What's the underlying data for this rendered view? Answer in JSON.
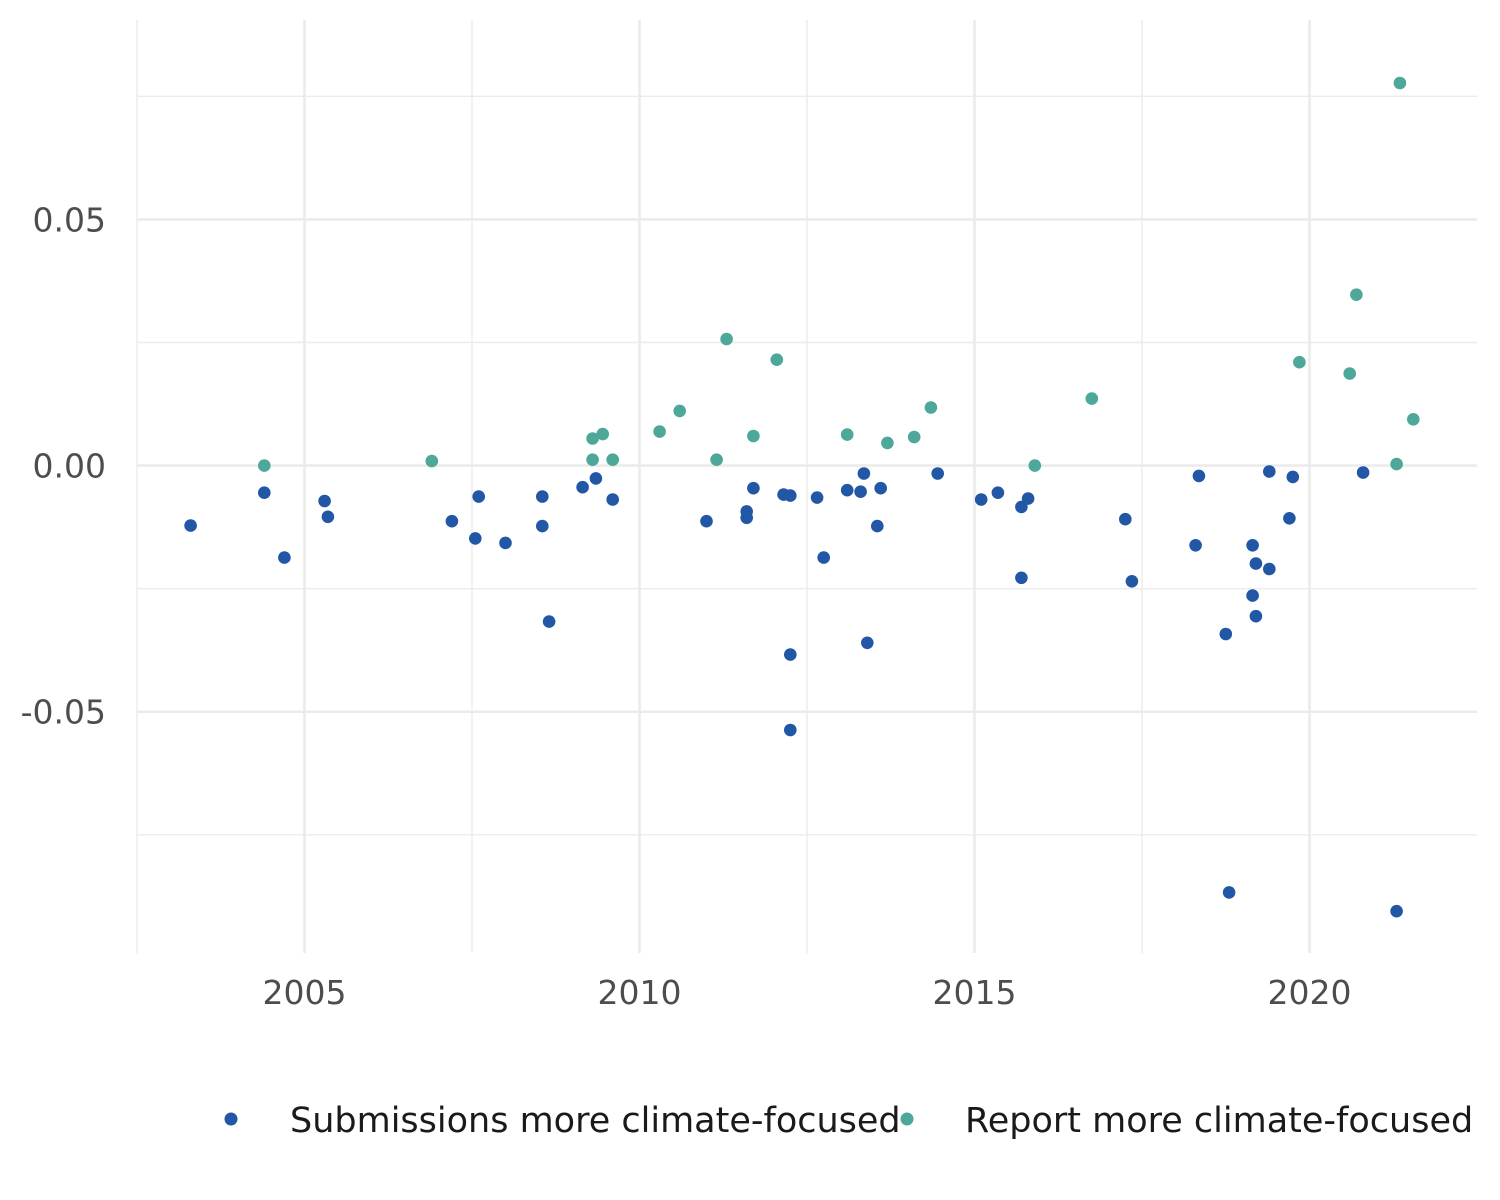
{
  "chart_data": {
    "type": "scatter",
    "title": "",
    "xlabel": "",
    "ylabel": "",
    "xlim": [
      2002.5,
      2022.5
    ],
    "ylim": [
      -0.099,
      0.0905
    ],
    "x_ticks": [
      2005,
      2010,
      2015,
      2020
    ],
    "x_tick_labels": [
      "2005",
      "2010",
      "2015",
      "2020"
    ],
    "y_ticks": [
      0.05,
      0.0,
      -0.05
    ],
    "y_tick_labels": [
      "0.05",
      "0.00",
      "-0.05"
    ],
    "grid": true,
    "legend_position": "bottom",
    "colors": {
      "submissions": "#2257a6",
      "report": "#4da89a"
    },
    "series": [
      {
        "name": "Submissions more climate-focused",
        "color": "#2257a6",
        "points": [
          [
            2003.3,
            -0.0122
          ],
          [
            2004.4,
            -0.0055
          ],
          [
            2004.7,
            -0.0187
          ],
          [
            2005.3,
            -0.0072
          ],
          [
            2005.35,
            -0.0104
          ],
          [
            2007.2,
            -0.0113
          ],
          [
            2007.55,
            -0.0148
          ],
          [
            2007.6,
            -0.0063
          ],
          [
            2008.0,
            -0.0157
          ],
          [
            2008.55,
            -0.0063
          ],
          [
            2008.55,
            -0.0123
          ],
          [
            2008.65,
            -0.0317
          ],
          [
            2009.15,
            -0.0044
          ],
          [
            2009.35,
            -0.0026
          ],
          [
            2009.6,
            -0.0069
          ],
          [
            2011.0,
            -0.0113
          ],
          [
            2011.6,
            -0.0093
          ],
          [
            2011.6,
            -0.0106
          ],
          [
            2011.7,
            -0.0046
          ],
          [
            2012.15,
            -0.0059
          ],
          [
            2012.25,
            -0.0061
          ],
          [
            2012.25,
            -0.0384
          ],
          [
            2012.25,
            -0.0537
          ],
          [
            2012.65,
            -0.0065
          ],
          [
            2012.75,
            -0.0187
          ],
          [
            2013.1,
            -0.005
          ],
          [
            2013.3,
            -0.0053
          ],
          [
            2013.35,
            -0.0016
          ],
          [
            2013.4,
            -0.036
          ],
          [
            2013.55,
            -0.0123
          ],
          [
            2013.6,
            -0.0046
          ],
          [
            2014.45,
            -0.0016
          ],
          [
            2015.1,
            -0.0069
          ],
          [
            2015.35,
            -0.0055
          ],
          [
            2015.7,
            -0.0084
          ],
          [
            2015.7,
            -0.0228
          ],
          [
            2015.8,
            -0.0067
          ],
          [
            2017.25,
            -0.0109
          ],
          [
            2017.35,
            -0.0235
          ],
          [
            2018.3,
            -0.0162
          ],
          [
            2018.35,
            -0.0021
          ],
          [
            2018.75,
            -0.0342
          ],
          [
            2018.8,
            -0.0867
          ],
          [
            2019.15,
            -0.0162
          ],
          [
            2019.15,
            -0.0264
          ],
          [
            2019.2,
            -0.0199
          ],
          [
            2019.2,
            -0.0306
          ],
          [
            2019.4,
            -0.0012
          ],
          [
            2019.4,
            -0.021
          ],
          [
            2019.7,
            -0.0107
          ],
          [
            2019.75,
            -0.0023
          ],
          [
            2020.8,
            -0.0014
          ],
          [
            2021.3,
            -0.0905
          ]
        ]
      },
      {
        "name": "Report more climate-focused",
        "color": "#4da89a",
        "points": [
          [
            2004.4,
            0.0
          ],
          [
            2006.9,
            0.0009
          ],
          [
            2009.3,
            0.0055
          ],
          [
            2009.3,
            0.0012
          ],
          [
            2009.45,
            0.0064
          ],
          [
            2009.6,
            0.0012
          ],
          [
            2010.3,
            0.0069
          ],
          [
            2010.6,
            0.0111
          ],
          [
            2011.15,
            0.0012
          ],
          [
            2011.3,
            0.0257
          ],
          [
            2011.7,
            0.006
          ],
          [
            2012.05,
            0.0215
          ],
          [
            2013.1,
            0.0063
          ],
          [
            2013.7,
            0.0046
          ],
          [
            2014.1,
            0.0058
          ],
          [
            2014.35,
            0.0118
          ],
          [
            2015.9,
            0.0
          ],
          [
            2016.75,
            0.0136
          ],
          [
            2019.85,
            0.021
          ],
          [
            2020.6,
            0.0187
          ],
          [
            2020.7,
            0.0347
          ],
          [
            2021.3,
            0.0003
          ],
          [
            2021.35,
            0.0777
          ],
          [
            2021.55,
            0.0094
          ]
        ]
      }
    ]
  },
  "legend": [
    {
      "label": "Submissions more climate-focused",
      "color": "#2257a6"
    },
    {
      "label": "Report more climate-focused",
      "color": "#4da89a"
    }
  ]
}
